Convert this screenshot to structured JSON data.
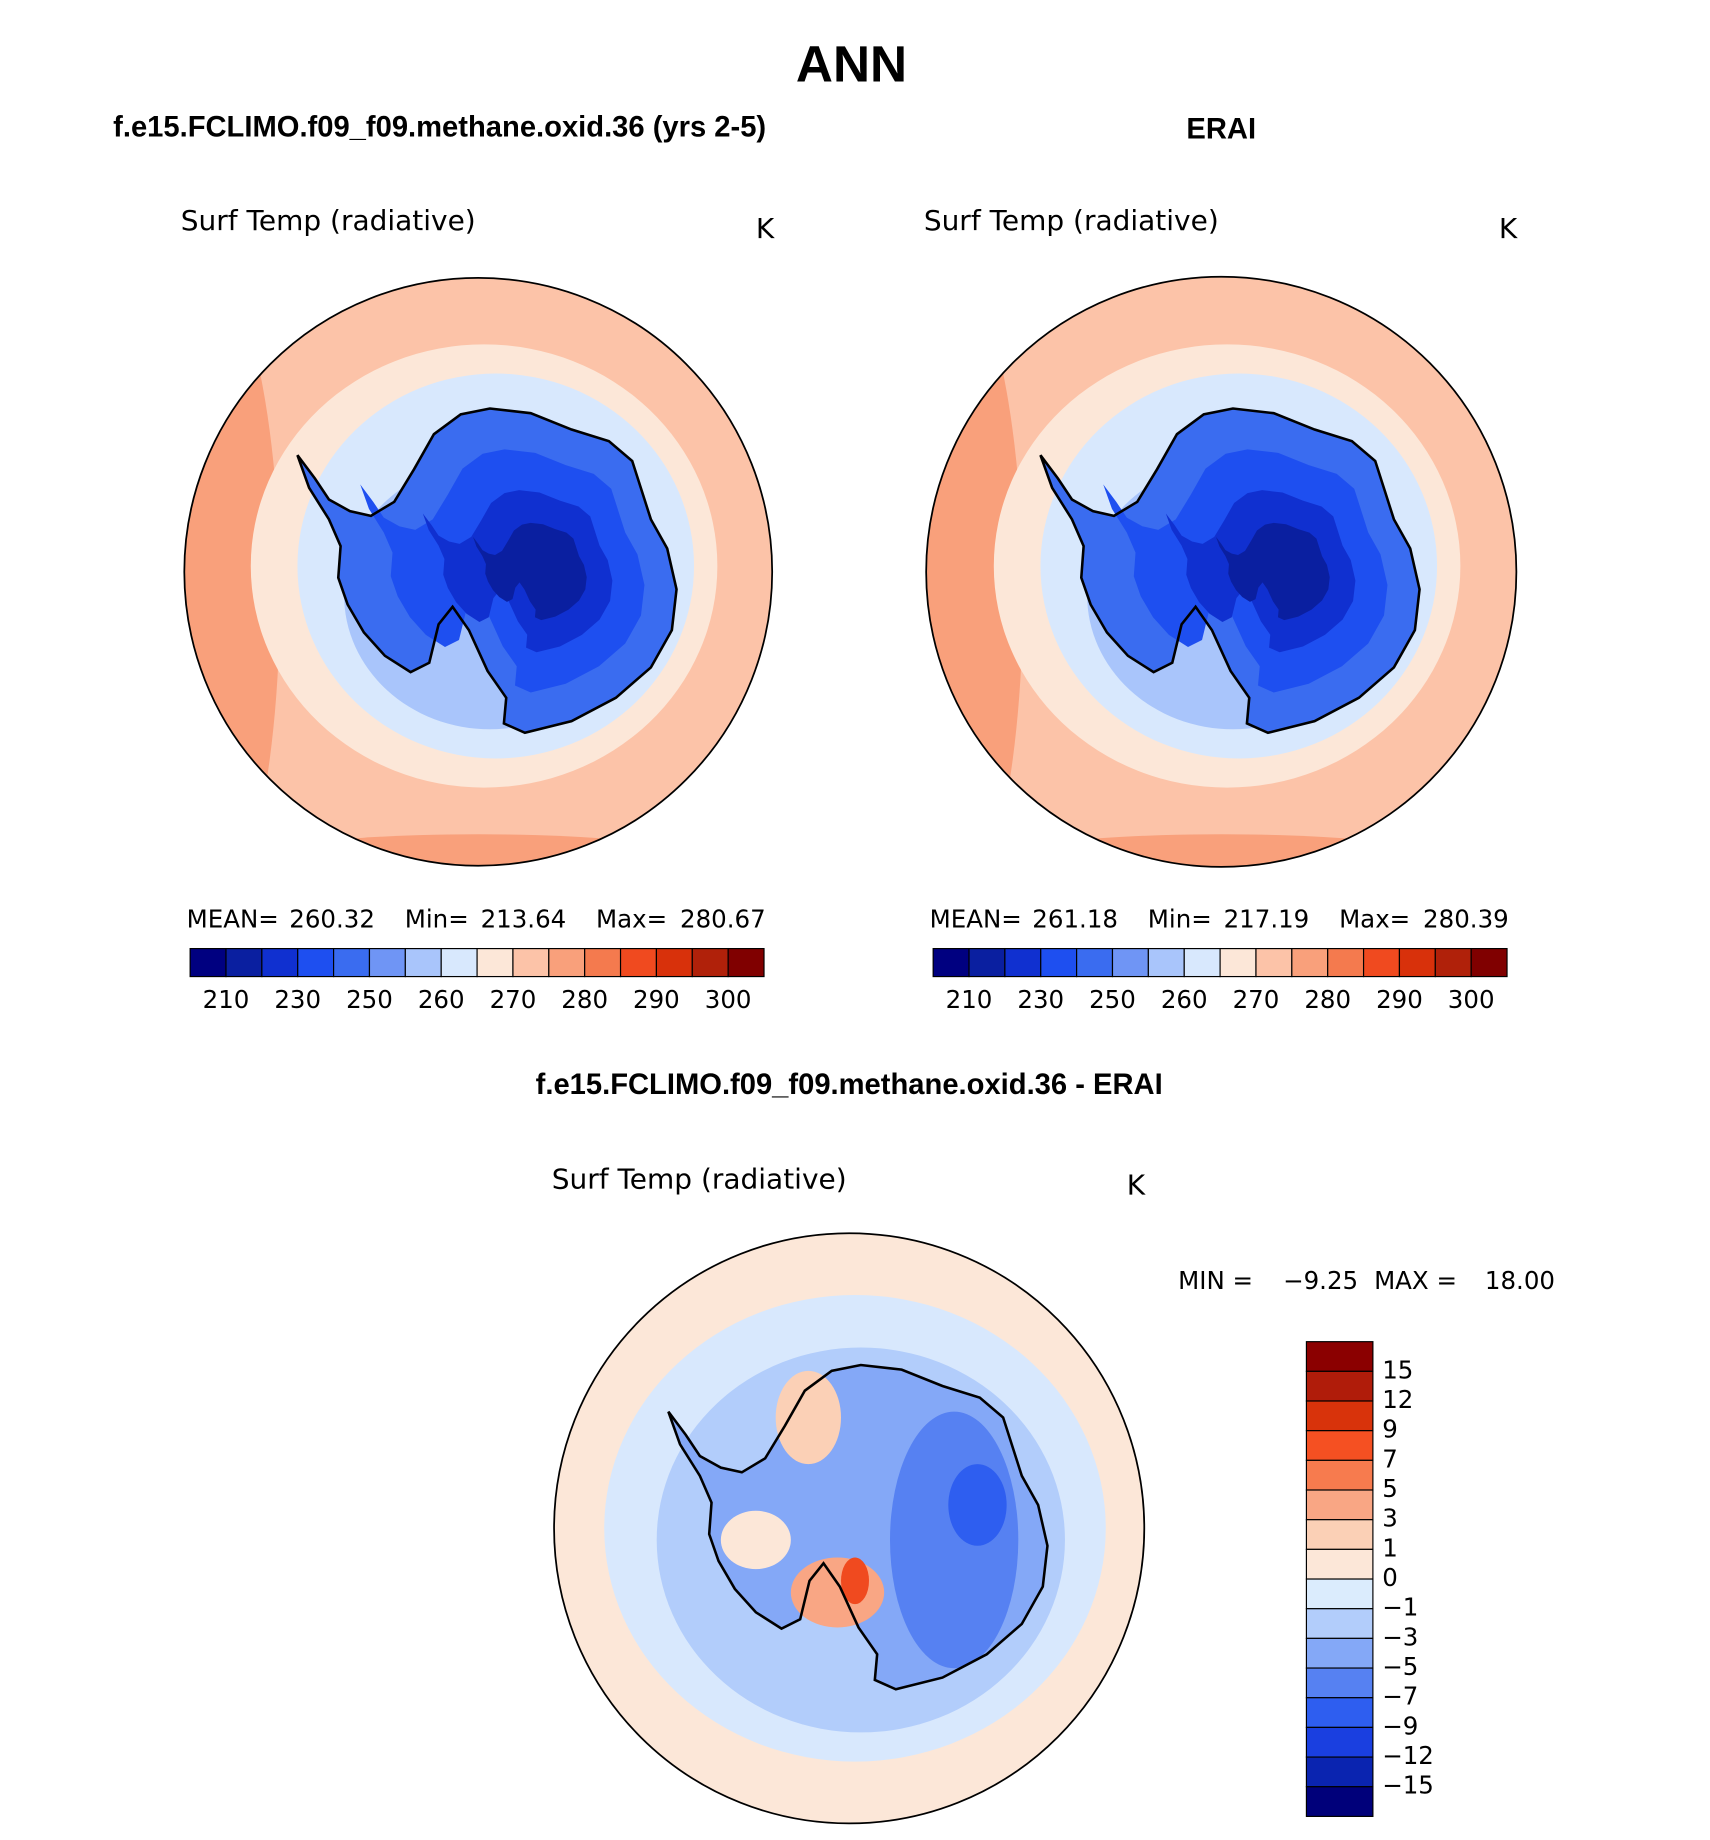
{
  "title": "ANN",
  "panels": [
    {
      "title": "f.e15.FCLIMO.f09_f09.methane.oxid.36 (yrs 2-5)",
      "variable": "Surf Temp (radiative)",
      "units": "K",
      "stats": [
        "MEAN=",
        "260.32",
        "Min=",
        "213.64",
        "Max=",
        "280.67"
      ],
      "colorbar": {
        "colors": [
          "#000080",
          "#0a1fa0",
          "#1030d0",
          "#1e4ff0",
          "#3a6cf0",
          "#6f95f5",
          "#a9c5fb",
          "#d8e8fd",
          "#fce7d8",
          "#fcc3a8",
          "#f9a07b",
          "#f47a4e",
          "#f04a1f",
          "#d8310b",
          "#b0210a",
          "#800000"
        ],
        "labels": [
          "210",
          "230",
          "250",
          "260",
          "270",
          "280",
          "290",
          "300"
        ]
      }
    },
    {
      "title": "ERAI",
      "variable": "Surf Temp (radiative)",
      "units": "K",
      "stats": [
        "MEAN=",
        "261.18",
        "Min=",
        "217.19",
        "Max=",
        "280.39"
      ],
      "colorbar": {
        "colors": [
          "#000080",
          "#0a1fa0",
          "#1030d0",
          "#1e4ff0",
          "#3a6cf0",
          "#6f95f5",
          "#a9c5fb",
          "#d8e8fd",
          "#fce7d8",
          "#fcc3a8",
          "#f9a07b",
          "#f47a4e",
          "#f04a1f",
          "#d8310b",
          "#b0210a",
          "#800000"
        ],
        "labels": [
          "210",
          "230",
          "250",
          "260",
          "270",
          "280",
          "290",
          "300"
        ]
      }
    }
  ],
  "difference": {
    "title": "f.e15.FCLIMO.f09_f09.methane.oxid.36 - ERAI",
    "variable": "Surf Temp (radiative)",
    "units": "K",
    "stats": [
      "MIN =",
      "−9.25",
      "MAX =",
      "18.00"
    ],
    "colorbar": {
      "colors": [
        "#8b0000",
        "#b01c0a",
        "#d8330b",
        "#f55022",
        "#f77b4e",
        "#f9a684",
        "#fbd0b6",
        "#fce7d8",
        "#dbecfd",
        "#b2cdfb",
        "#84a8f7",
        "#5681f2",
        "#2e5ef0",
        "#1a3fe0",
        "#0a24b0",
        "#00007a"
      ],
      "labels": [
        "15",
        "12",
        "9",
        "7",
        "5",
        "3",
        "1",
        "0",
        "−1",
        "−3",
        "−5",
        "−7",
        "−9",
        "−12",
        "−15"
      ]
    }
  }
}
